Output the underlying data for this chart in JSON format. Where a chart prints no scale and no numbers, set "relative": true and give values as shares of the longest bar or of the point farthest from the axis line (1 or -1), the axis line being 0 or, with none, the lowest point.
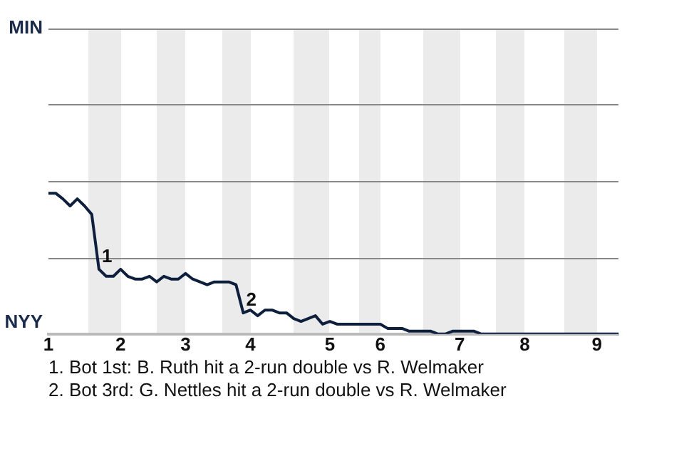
{
  "chart_data": {
    "type": "line",
    "relative": true,
    "categories": [
      "1",
      null,
      null,
      null,
      null,
      null,
      null,
      null,
      null,
      null,
      "2",
      null,
      null,
      null,
      null,
      null,
      null,
      null,
      null,
      "3",
      null,
      null,
      null,
      null,
      null,
      null,
      null,
      null,
      "4",
      null,
      null,
      null,
      null,
      null,
      null,
      null,
      null,
      null,
      null,
      "5",
      null,
      null,
      null,
      null,
      null,
      null,
      "6",
      null,
      null,
      null,
      null,
      null,
      null,
      null,
      null,
      null,
      null,
      "7",
      null,
      null,
      null,
      null,
      null,
      null,
      null,
      null,
      "8",
      null,
      null,
      null,
      null,
      null,
      null,
      null,
      null,
      null,
      "9",
      null,
      null,
      null
    ],
    "series": [
      {
        "color": "#0d1f3c",
        "values": [
          1,
          1,
          0.96,
          0.91,
          0.96,
          0.91,
          0.85,
          0.46,
          0.41,
          0.41,
          0.46,
          0.41,
          0.39,
          0.39,
          0.41,
          0.37,
          0.41,
          0.39,
          0.39,
          0.43,
          0.39,
          0.37,
          0.35,
          0.37,
          0.37,
          0.37,
          0.35,
          0.15,
          0.17,
          0.13,
          0.17,
          0.17,
          0.15,
          0.15,
          0.11,
          0.09,
          0.11,
          0.13,
          0.07,
          0.09,
          0.07,
          0.07,
          0.07,
          0.07,
          0.07,
          0.07,
          0.07,
          0.04,
          0.04,
          0.04,
          0.02,
          0.02,
          0.02,
          0.02,
          0,
          0,
          0.02,
          0.02,
          0.02,
          0.02,
          0,
          0,
          0,
          0,
          0,
          0,
          0,
          0,
          0,
          0,
          0,
          0,
          0,
          0,
          0,
          0,
          0,
          0,
          0,
          0
        ]
      }
    ],
    "annotations": [
      "MIN",
      "NYY",
      "1",
      "2",
      "1. Bot 1st: B. Ruth hit a 2-run double vs R. Welmaker",
      "2. Bot 3rd: G. Nettles hit a 2-run double vs R. Welmaker"
    ],
    "ref_lines": [
      {
        "axis": "y",
        "value": 0.54,
        "color": "#888888"
      },
      {
        "axis": "y",
        "value": 1.09,
        "color": "#888888"
      },
      {
        "axis": "y",
        "value": 1.63,
        "color": "#888888"
      },
      {
        "axis": "y",
        "value": 2.17,
        "color": "#888888"
      }
    ],
    "legend": false,
    "marker": "none",
    "line_style": "solid"
  }
}
